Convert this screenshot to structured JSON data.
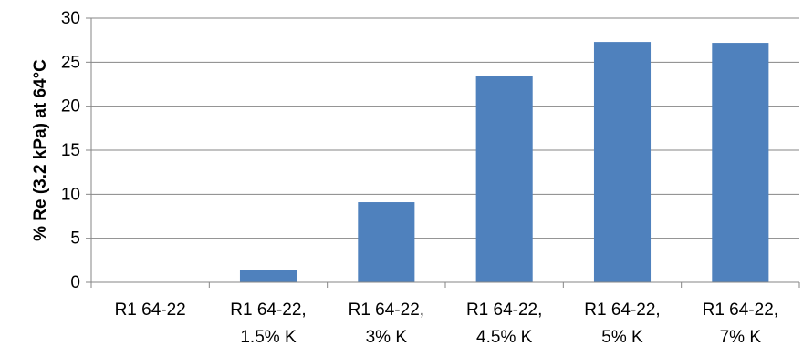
{
  "chart_data": {
    "type": "bar",
    "title": "",
    "xlabel": "",
    "ylabel": "% Re (3.2 kPa) at 64°C",
    "ylim": [
      0,
      30
    ],
    "yticks": [
      0,
      5,
      10,
      15,
      20,
      25,
      30
    ],
    "grid": true,
    "legend": "none",
    "categories": [
      [
        "R1 64-22"
      ],
      [
        "R1 64-22,",
        "1.5% K"
      ],
      [
        "R1 64-22,",
        "3% K"
      ],
      [
        "R1 64-22,",
        "4.5% K"
      ],
      [
        "R1 64-22,",
        "5% K"
      ],
      [
        "R1 64-22,",
        "7% K"
      ]
    ],
    "values": [
      0,
      1.4,
      9.1,
      23.4,
      27.3,
      27.2
    ],
    "bar_color": "#4F81BD"
  }
}
